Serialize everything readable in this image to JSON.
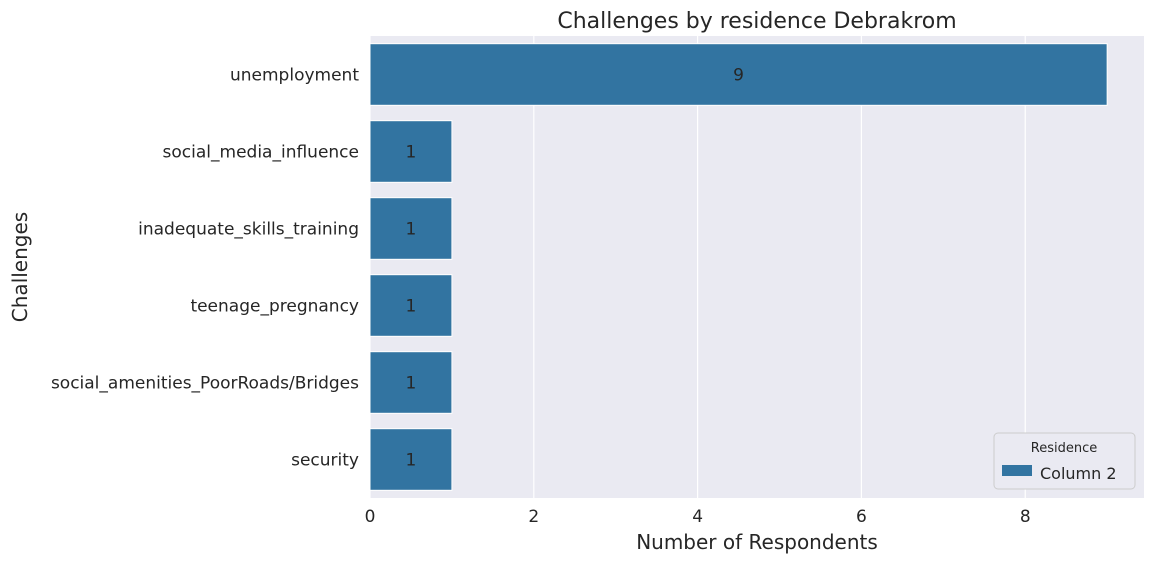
{
  "chart_data": {
    "type": "bar",
    "orientation": "horizontal",
    "title": "Challenges by residence Debrakrom",
    "xlabel": "Number of Respondents",
    "ylabel": "Challenges",
    "categories": [
      "unemployment",
      "social_media_influence",
      "inadequate_skills_training",
      "teenage_pregnancy",
      "social_amenities_PoorRoads/Bridges",
      "security"
    ],
    "series": [
      {
        "name": "Column 2",
        "values": [
          9,
          1,
          1,
          1,
          1,
          1
        ],
        "color": "#3274a1"
      }
    ],
    "data_labels": [
      "9",
      "1",
      "1",
      "1",
      "1",
      "1"
    ],
    "xlim": [
      0,
      9.45
    ],
    "xticks": [
      0,
      2,
      4,
      6,
      8
    ],
    "xtick_labels": [
      "0",
      "2",
      "4",
      "6",
      "8"
    ],
    "grid": true,
    "legend": {
      "title": "Residence",
      "position": "bottom-right"
    },
    "colors": {
      "plot_background": "#eaeaf2",
      "grid": "#ffffff",
      "bar": "#3274a1"
    }
  }
}
